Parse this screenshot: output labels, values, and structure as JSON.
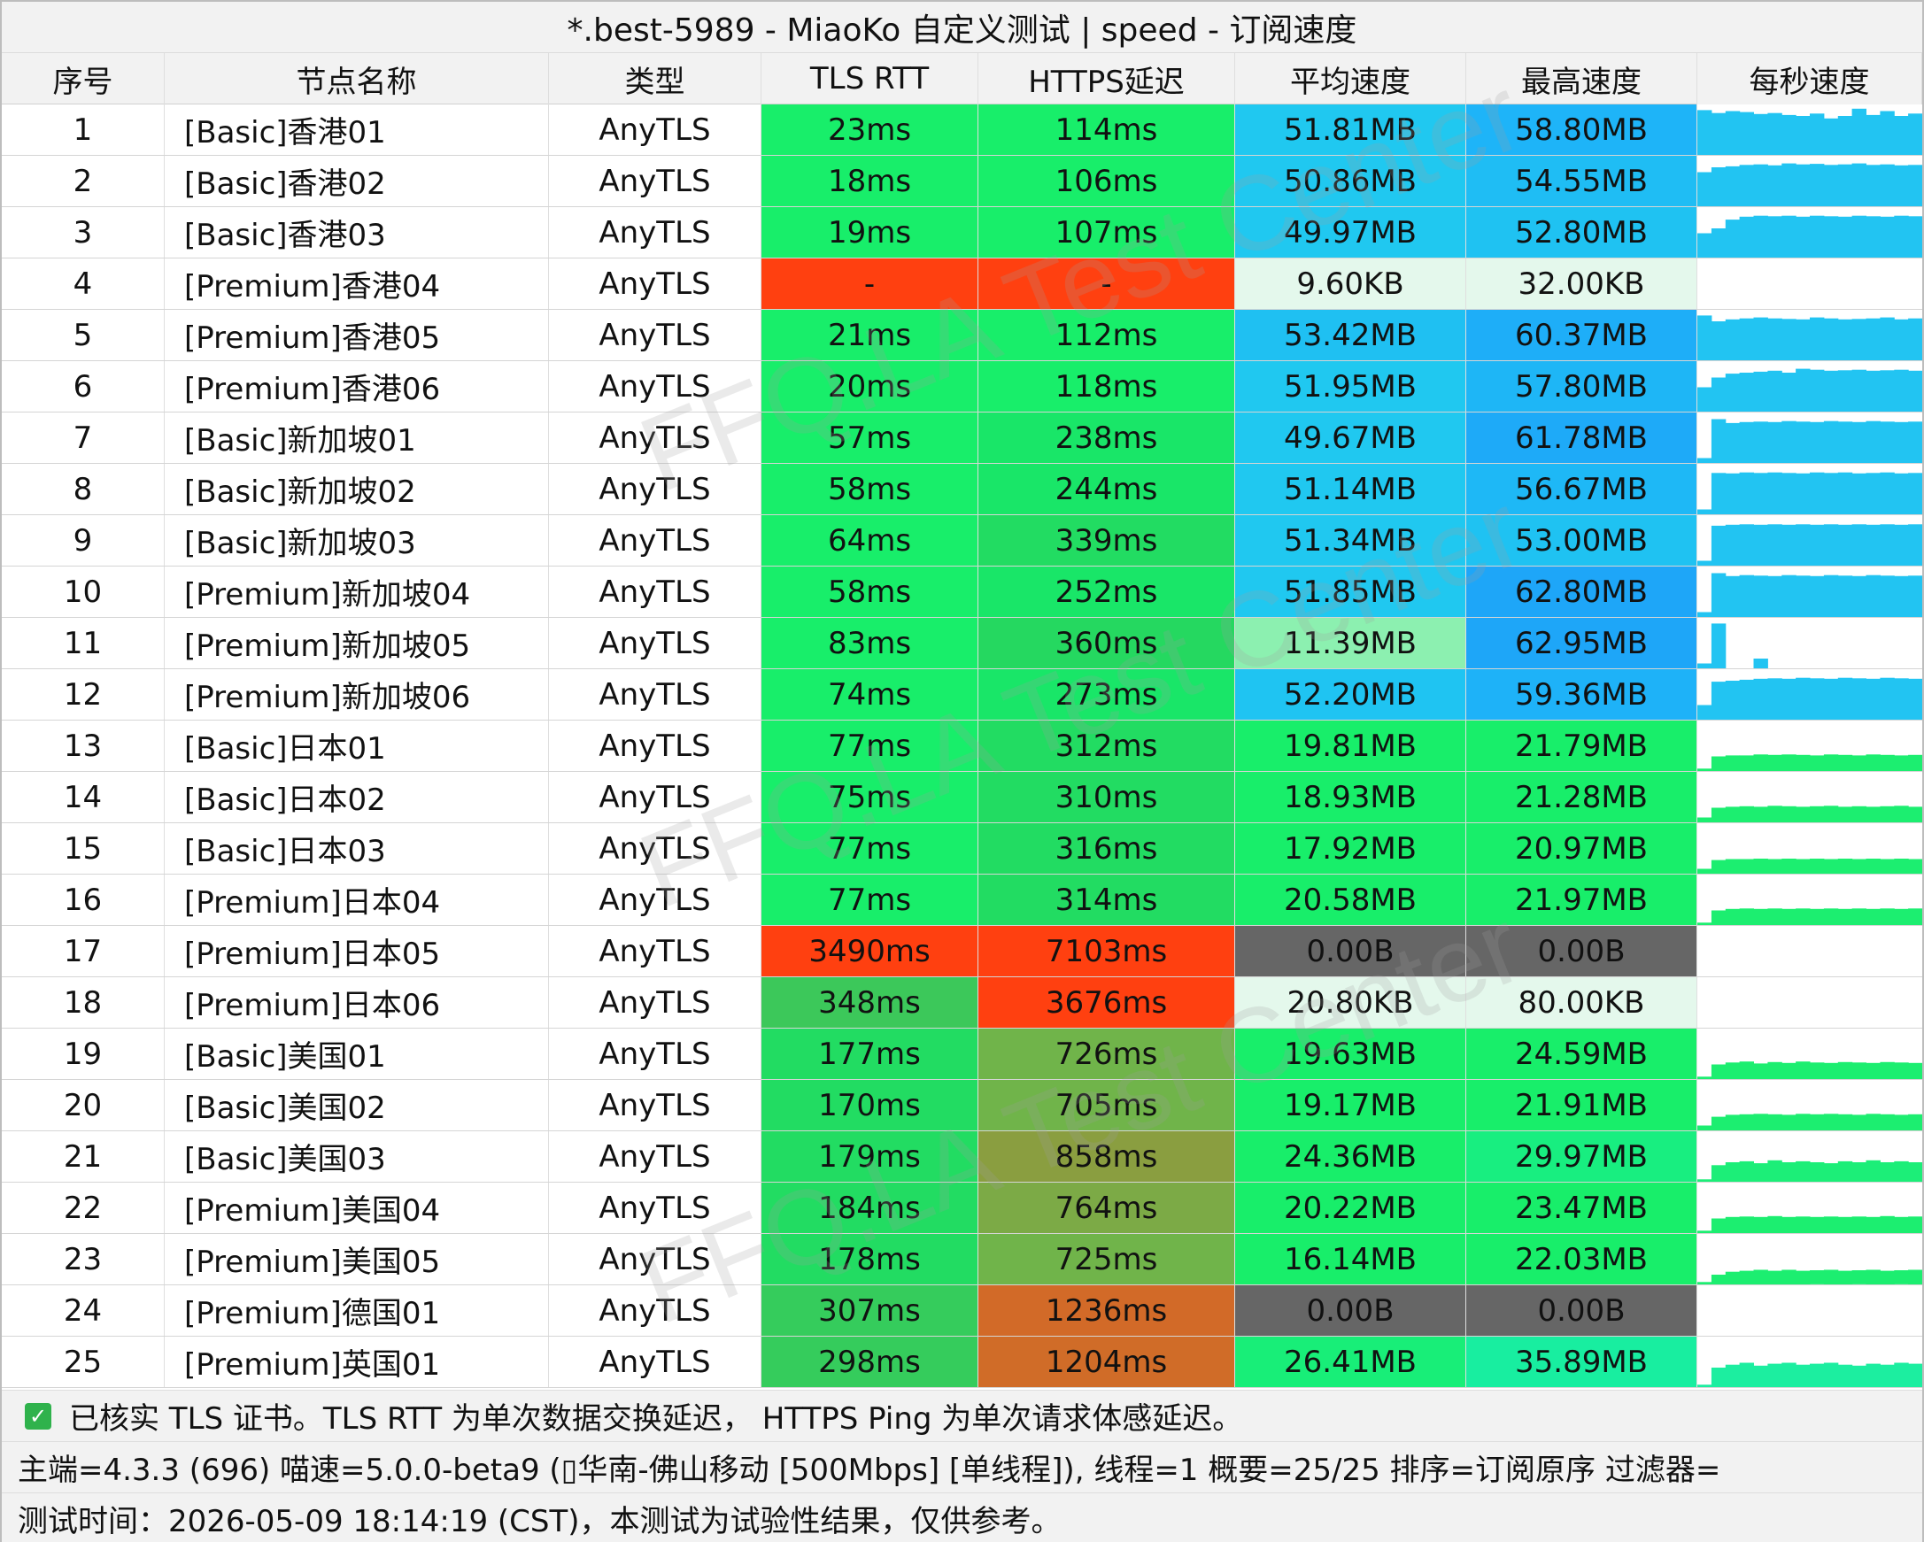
{
  "window": {
    "title": "*.best-5989 - MiaoKo 自定义测试 | speed - 订阅速度"
  },
  "columns": [
    "序号",
    "节点名称",
    "类型",
    "TLS RTT",
    "HTTPS延迟",
    "平均速度",
    "最高速度",
    "每秒速度"
  ],
  "rows": [
    {
      "idx": "1",
      "name": "[Basic]香港01",
      "type": "AnyTLS",
      "tls": "23ms",
      "https": "114ms",
      "avg": "51.81MB",
      "max": "58.80MB",
      "tls_color": "#18ee6a",
      "https_color": "#18ee6a",
      "avg_color": "#20c8f0",
      "max_color": "#1eb4f8",
      "spark_color": "#22c4f2",
      "spark": [
        0.92,
        0.86,
        0.9,
        0.88,
        0.84,
        0.86,
        0.82,
        0.8,
        0.85,
        0.75,
        0.8,
        0.95,
        0.82,
        0.9,
        0.8,
        0.85
      ]
    },
    {
      "idx": "2",
      "name": "[Basic]香港02",
      "type": "AnyTLS",
      "tls": "18ms",
      "https": "106ms",
      "avg": "50.86MB",
      "max": "54.55MB",
      "tls_color": "#18ee6a",
      "https_color": "#18ee6a",
      "avg_color": "#20c8f0",
      "max_color": "#1fbdf4",
      "spark_color": "#22c4f2",
      "spark": [
        0.7,
        0.8,
        0.82,
        0.85,
        0.86,
        0.84,
        0.88,
        0.86,
        0.87,
        0.85,
        0.86,
        0.88,
        0.85,
        0.86,
        0.84,
        0.85
      ]
    },
    {
      "idx": "3",
      "name": "[Basic]香港03",
      "type": "AnyTLS",
      "tls": "19ms",
      "https": "107ms",
      "avg": "49.97MB",
      "max": "52.80MB",
      "tls_color": "#18ee6a",
      "https_color": "#18ee6a",
      "avg_color": "#20c8f0",
      "max_color": "#1fc2f2",
      "spark_color": "#22c4f2",
      "spark": [
        0.5,
        0.6,
        0.78,
        0.84,
        0.86,
        0.85,
        0.86,
        0.84,
        0.86,
        0.85,
        0.84,
        0.86,
        0.85,
        0.84,
        0.86,
        0.85
      ]
    },
    {
      "idx": "4",
      "name": "[Premium]香港04",
      "type": "AnyTLS",
      "tls": "-",
      "https": "-",
      "avg": "9.60KB",
      "max": "32.00KB",
      "tls_color": "#ff4010",
      "https_color": "#ff4010",
      "avg_color": "#e4f8ec",
      "max_color": "#e4f8ec",
      "spark_color": "#ffffff",
      "spark": []
    },
    {
      "idx": "5",
      "name": "[Premium]香港05",
      "type": "AnyTLS",
      "tls": "21ms",
      "https": "112ms",
      "avg": "53.42MB",
      "max": "60.37MB",
      "tls_color": "#18ee6a",
      "https_color": "#18ee6a",
      "avg_color": "#1fc0f2",
      "max_color": "#1eaef8",
      "spark_color": "#22c4f2",
      "spark": [
        0.92,
        0.8,
        0.84,
        0.86,
        0.88,
        0.86,
        0.85,
        0.84,
        0.88,
        0.86,
        0.84,
        0.85,
        0.86,
        0.88,
        0.84,
        0.86
      ]
    },
    {
      "idx": "6",
      "name": "[Premium]香港06",
      "type": "AnyTLS",
      "tls": "20ms",
      "https": "118ms",
      "avg": "51.95MB",
      "max": "57.80MB",
      "tls_color": "#18ee6a",
      "https_color": "#18ee6a",
      "avg_color": "#20c8f0",
      "max_color": "#1eb6f6",
      "spark_color": "#22c4f2",
      "spark": [
        0.5,
        0.7,
        0.78,
        0.8,
        0.82,
        0.84,
        0.8,
        0.88,
        0.86,
        0.84,
        0.85,
        0.86,
        0.84,
        0.85,
        0.86,
        0.84
      ]
    },
    {
      "idx": "7",
      "name": "[Basic]新加坡01",
      "type": "AnyTLS",
      "tls": "57ms",
      "https": "238ms",
      "avg": "49.67MB",
      "max": "61.78MB",
      "tls_color": "#18ee6a",
      "https_color": "#19e668",
      "avg_color": "#20c8f0",
      "max_color": "#1eaaf8",
      "spark_color": "#22c4f2",
      "spark": [
        0.1,
        0.9,
        0.82,
        0.84,
        0.85,
        0.84,
        0.86,
        0.85,
        0.84,
        0.86,
        0.85,
        0.84,
        0.86,
        0.85,
        0.84,
        0.85
      ]
    },
    {
      "idx": "8",
      "name": "[Basic]新加坡02",
      "type": "AnyTLS",
      "tls": "58ms",
      "https": "244ms",
      "avg": "51.14MB",
      "max": "56.67MB",
      "tls_color": "#18ee6a",
      "https_color": "#19e668",
      "avg_color": "#20c8f0",
      "max_color": "#1eb8f6",
      "spark_color": "#22c4f2",
      "spark": [
        0.1,
        0.85,
        0.84,
        0.86,
        0.85,
        0.86,
        0.85,
        0.84,
        0.86,
        0.85,
        0.86,
        0.84,
        0.85,
        0.86,
        0.84,
        0.85
      ]
    },
    {
      "idx": "9",
      "name": "[Basic]新加坡03",
      "type": "AnyTLS",
      "tls": "64ms",
      "https": "339ms",
      "avg": "51.34MB",
      "max": "53.00MB",
      "tls_color": "#18ee6a",
      "https_color": "#22dc62",
      "avg_color": "#20c8f0",
      "max_color": "#1fc2f2",
      "spark_color": "#22c4f2",
      "spark": [
        0.1,
        0.82,
        0.84,
        0.85,
        0.84,
        0.85,
        0.84,
        0.85,
        0.84,
        0.85,
        0.84,
        0.85,
        0.84,
        0.85,
        0.84,
        0.85
      ]
    },
    {
      "idx": "10",
      "name": "[Premium]新加坡04",
      "type": "AnyTLS",
      "tls": "58ms",
      "https": "252ms",
      "avg": "51.85MB",
      "max": "62.80MB",
      "tls_color": "#18ee6a",
      "https_color": "#19e668",
      "avg_color": "#20c8f0",
      "max_color": "#1ea6f8",
      "spark_color": "#22c4f2",
      "spark": [
        0.1,
        0.9,
        0.84,
        0.86,
        0.85,
        0.84,
        0.86,
        0.85,
        0.84,
        0.86,
        0.85,
        0.84,
        0.86,
        0.85,
        0.84,
        0.85
      ]
    },
    {
      "idx": "11",
      "name": "[Premium]新加坡05",
      "type": "AnyTLS",
      "tls": "83ms",
      "https": "360ms",
      "avg": "11.39MB",
      "max": "62.95MB",
      "tls_color": "#18ee6a",
      "https_color": "#25d860",
      "avg_color": "#8cf0b0",
      "max_color": "#1ea6f8",
      "spark_color": "#22c4f2",
      "spark": [
        0.1,
        0.92,
        0.0,
        0.0,
        0.2,
        0.0,
        0.0,
        0.0,
        0.0,
        0.0,
        0.0,
        0.0,
        0.0,
        0.0,
        0.0,
        0.0
      ]
    },
    {
      "idx": "12",
      "name": "[Premium]新加坡06",
      "type": "AnyTLS",
      "tls": "74ms",
      "https": "273ms",
      "avg": "52.20MB",
      "max": "59.36MB",
      "tls_color": "#18ee6a",
      "https_color": "#19e668",
      "avg_color": "#1fc4f2",
      "max_color": "#1eb2f8",
      "spark_color": "#22c4f2",
      "spark": [
        0.3,
        0.78,
        0.8,
        0.82,
        0.84,
        0.85,
        0.84,
        0.86,
        0.85,
        0.84,
        0.86,
        0.85,
        0.84,
        0.86,
        0.85,
        0.84
      ]
    },
    {
      "idx": "13",
      "name": "[Basic]日本01",
      "type": "AnyTLS",
      "tls": "77ms",
      "https": "312ms",
      "avg": "19.81MB",
      "max": "21.79MB",
      "tls_color": "#18ee6a",
      "https_color": "#22dc62",
      "avg_color": "#18ee6a",
      "max_color": "#18ee6a",
      "spark_color": "#1cee70",
      "spark": [
        0.05,
        0.3,
        0.32,
        0.32,
        0.34,
        0.33,
        0.34,
        0.33,
        0.32,
        0.34,
        0.33,
        0.32,
        0.34,
        0.33,
        0.32,
        0.33
      ]
    },
    {
      "idx": "14",
      "name": "[Basic]日本02",
      "type": "AnyTLS",
      "tls": "75ms",
      "https": "310ms",
      "avg": "18.93MB",
      "max": "21.28MB",
      "tls_color": "#18ee6a",
      "https_color": "#22dc62",
      "avg_color": "#18ee6a",
      "max_color": "#18ee6a",
      "spark_color": "#1cee70",
      "spark": [
        0.1,
        0.3,
        0.32,
        0.33,
        0.32,
        0.34,
        0.33,
        0.32,
        0.33,
        0.34,
        0.32,
        0.33,
        0.32,
        0.33,
        0.34,
        0.32
      ]
    },
    {
      "idx": "15",
      "name": "[Basic]日本03",
      "type": "AnyTLS",
      "tls": "77ms",
      "https": "316ms",
      "avg": "17.92MB",
      "max": "20.97MB",
      "tls_color": "#18ee6a",
      "https_color": "#22dc62",
      "avg_color": "#18ee6a",
      "max_color": "#18ee6a",
      "spark_color": "#1cee70",
      "spark": [
        0.1,
        0.28,
        0.3,
        0.3,
        0.31,
        0.3,
        0.31,
        0.3,
        0.31,
        0.3,
        0.31,
        0.3,
        0.31,
        0.3,
        0.31,
        0.3
      ]
    },
    {
      "idx": "16",
      "name": "[Premium]日本04",
      "type": "AnyTLS",
      "tls": "77ms",
      "https": "314ms",
      "avg": "20.58MB",
      "max": "21.97MB",
      "tls_color": "#18ee6a",
      "https_color": "#22dc62",
      "avg_color": "#18ee6a",
      "max_color": "#18ee6a",
      "spark_color": "#1cee70",
      "spark": [
        0.05,
        0.3,
        0.33,
        0.34,
        0.33,
        0.34,
        0.33,
        0.34,
        0.33,
        0.34,
        0.33,
        0.34,
        0.33,
        0.34,
        0.33,
        0.34
      ]
    },
    {
      "idx": "17",
      "name": "[Premium]日本05",
      "type": "AnyTLS",
      "tls": "3490ms",
      "https": "7103ms",
      "avg": "0.00B",
      "max": "0.00B",
      "tls_color": "#ff4010",
      "https_color": "#ff4010",
      "avg_color": "#666666",
      "max_color": "#666666",
      "spark_color": "#ffffff",
      "spark": []
    },
    {
      "idx": "18",
      "name": "[Premium]日本06",
      "type": "AnyTLS",
      "tls": "348ms",
      "https": "3676ms",
      "avg": "20.80KB",
      "max": "80.00KB",
      "tls_color": "#3cc85a",
      "https_color": "#ff4010",
      "avg_color": "#e4f8ec",
      "max_color": "#e4f8ec",
      "spark_color": "#ffffff",
      "spark": []
    },
    {
      "idx": "19",
      "name": "[Basic]美国01",
      "type": "AnyTLS",
      "tls": "177ms",
      "https": "726ms",
      "avg": "19.63MB",
      "max": "24.59MB",
      "tls_color": "#22dc62",
      "https_color": "#70b44a",
      "avg_color": "#18ee6a",
      "max_color": "#18ee6a",
      "spark_color": "#1cee70",
      "spark": [
        0.05,
        0.3,
        0.34,
        0.36,
        0.32,
        0.35,
        0.33,
        0.36,
        0.34,
        0.33,
        0.35,
        0.34,
        0.33,
        0.35,
        0.34,
        0.33
      ]
    },
    {
      "idx": "20",
      "name": "[Basic]美国02",
      "type": "AnyTLS",
      "tls": "170ms",
      "https": "705ms",
      "avg": "19.17MB",
      "max": "21.91MB",
      "tls_color": "#22dc62",
      "https_color": "#70b44a",
      "avg_color": "#18ee6a",
      "max_color": "#18ee6a",
      "spark_color": "#1cee70",
      "spark": [
        0.1,
        0.28,
        0.32,
        0.33,
        0.34,
        0.33,
        0.32,
        0.34,
        0.33,
        0.34,
        0.33,
        0.32,
        0.34,
        0.33,
        0.32,
        0.33
      ]
    },
    {
      "idx": "21",
      "name": "[Basic]美国03",
      "type": "AnyTLS",
      "tls": "179ms",
      "https": "858ms",
      "avg": "24.36MB",
      "max": "29.97MB",
      "tls_color": "#22dc62",
      "https_color": "#8a9e40",
      "avg_color": "#18ee6a",
      "max_color": "#18ee80",
      "spark_color": "#1cee78",
      "spark": [
        0.05,
        0.34,
        0.4,
        0.42,
        0.38,
        0.44,
        0.4,
        0.42,
        0.4,
        0.38,
        0.42,
        0.4,
        0.44,
        0.4,
        0.42,
        0.4
      ]
    },
    {
      "idx": "22",
      "name": "[Premium]美国04",
      "type": "AnyTLS",
      "tls": "184ms",
      "https": "764ms",
      "avg": "20.22MB",
      "max": "23.47MB",
      "tls_color": "#22dc62",
      "https_color": "#7caa46",
      "avg_color": "#18ee6a",
      "max_color": "#18ee6a",
      "spark_color": "#1cee70",
      "spark": [
        0.05,
        0.3,
        0.33,
        0.34,
        0.33,
        0.35,
        0.33,
        0.34,
        0.33,
        0.34,
        0.33,
        0.34,
        0.33,
        0.35,
        0.33,
        0.34
      ]
    },
    {
      "idx": "23",
      "name": "[Premium]美国05",
      "type": "AnyTLS",
      "tls": "178ms",
      "https": "725ms",
      "avg": "16.14MB",
      "max": "22.03MB",
      "tls_color": "#22dc62",
      "https_color": "#70b44a",
      "avg_color": "#18ee6a",
      "max_color": "#18ee6a",
      "spark_color": "#1cee70",
      "spark": [
        0.05,
        0.2,
        0.26,
        0.28,
        0.3,
        0.28,
        0.3,
        0.28,
        0.29,
        0.3,
        0.28,
        0.29,
        0.3,
        0.28,
        0.29,
        0.3
      ]
    },
    {
      "idx": "24",
      "name": "[Premium]德国01",
      "type": "AnyTLS",
      "tls": "307ms",
      "https": "1236ms",
      "avg": "0.00B",
      "max": "0.00B",
      "tls_color": "#35cc5c",
      "https_color": "#d26a28",
      "avg_color": "#666666",
      "max_color": "#666666",
      "spark_color": "#ffffff",
      "spark": []
    },
    {
      "idx": "25",
      "name": "[Premium]英国01",
      "type": "AnyTLS",
      "tls": "298ms",
      "https": "1204ms",
      "avg": "26.41MB",
      "max": "35.89MB",
      "tls_color": "#35cc5c",
      "https_color": "#d06c28",
      "avg_color": "#18ee78",
      "max_color": "#18eea0",
      "spark_color": "#1ceea0",
      "spark": [
        0.05,
        0.4,
        0.46,
        0.5,
        0.44,
        0.48,
        0.5,
        0.46,
        0.48,
        0.5,
        0.46,
        0.44,
        0.48,
        0.46,
        0.5,
        0.48
      ]
    }
  ],
  "footer": {
    "note": "已核实 TLS 证书。TLS RTT 为单次数据交换延迟， HTTPS Ping 为单次请求体感延迟。",
    "info": "主端=4.3.3 (696) 喵速=5.0.0-beta9 (▯华南-佛山移动 [500Mbps] [单线程]), 线程=1 概要=25/25 排序=订阅原序 过滤器=",
    "time": "测试时间：2026-05-09 18:14:19 (CST)，本测试为试验性结果，仅供参考。"
  },
  "watermark": "FFQ.LA Test Center",
  "icons": {
    "note_check": "checkbox-checked-icon"
  }
}
